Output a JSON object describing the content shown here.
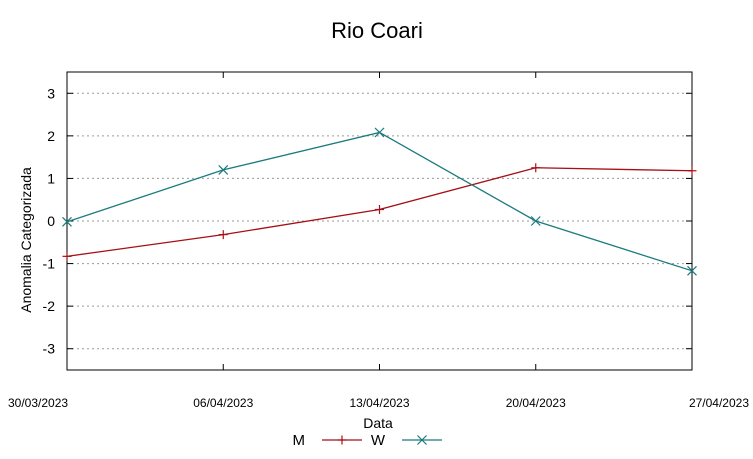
{
  "chart_data": {
    "type": "line",
    "title": "Rio Coari",
    "xlabel": "Data",
    "ylabel": "Anomalia Categorizada",
    "categories": [
      "30/03/2023",
      "06/04/2023",
      "13/04/2023",
      "20/04/2023",
      "27/04/2023"
    ],
    "ylim": [
      -3.5,
      3.5
    ],
    "yticks": [
      "-3",
      "-2",
      "-1",
      "0",
      "1",
      "2",
      "3"
    ],
    "ytick_values": [
      -3,
      -2,
      -1,
      0,
      1,
      2,
      3
    ],
    "grid": "horizontal-dotted",
    "legend": "bottom-center",
    "series": [
      {
        "name": "M",
        "values": [
          -0.83,
          -0.32,
          0.27,
          1.25,
          1.18
        ],
        "color": "#a50f15",
        "marker": "plus"
      },
      {
        "name": "W",
        "values": [
          -0.02,
          1.2,
          2.08,
          0.0,
          -1.17
        ],
        "color": "#1b7b7e",
        "marker": "x"
      }
    ]
  }
}
